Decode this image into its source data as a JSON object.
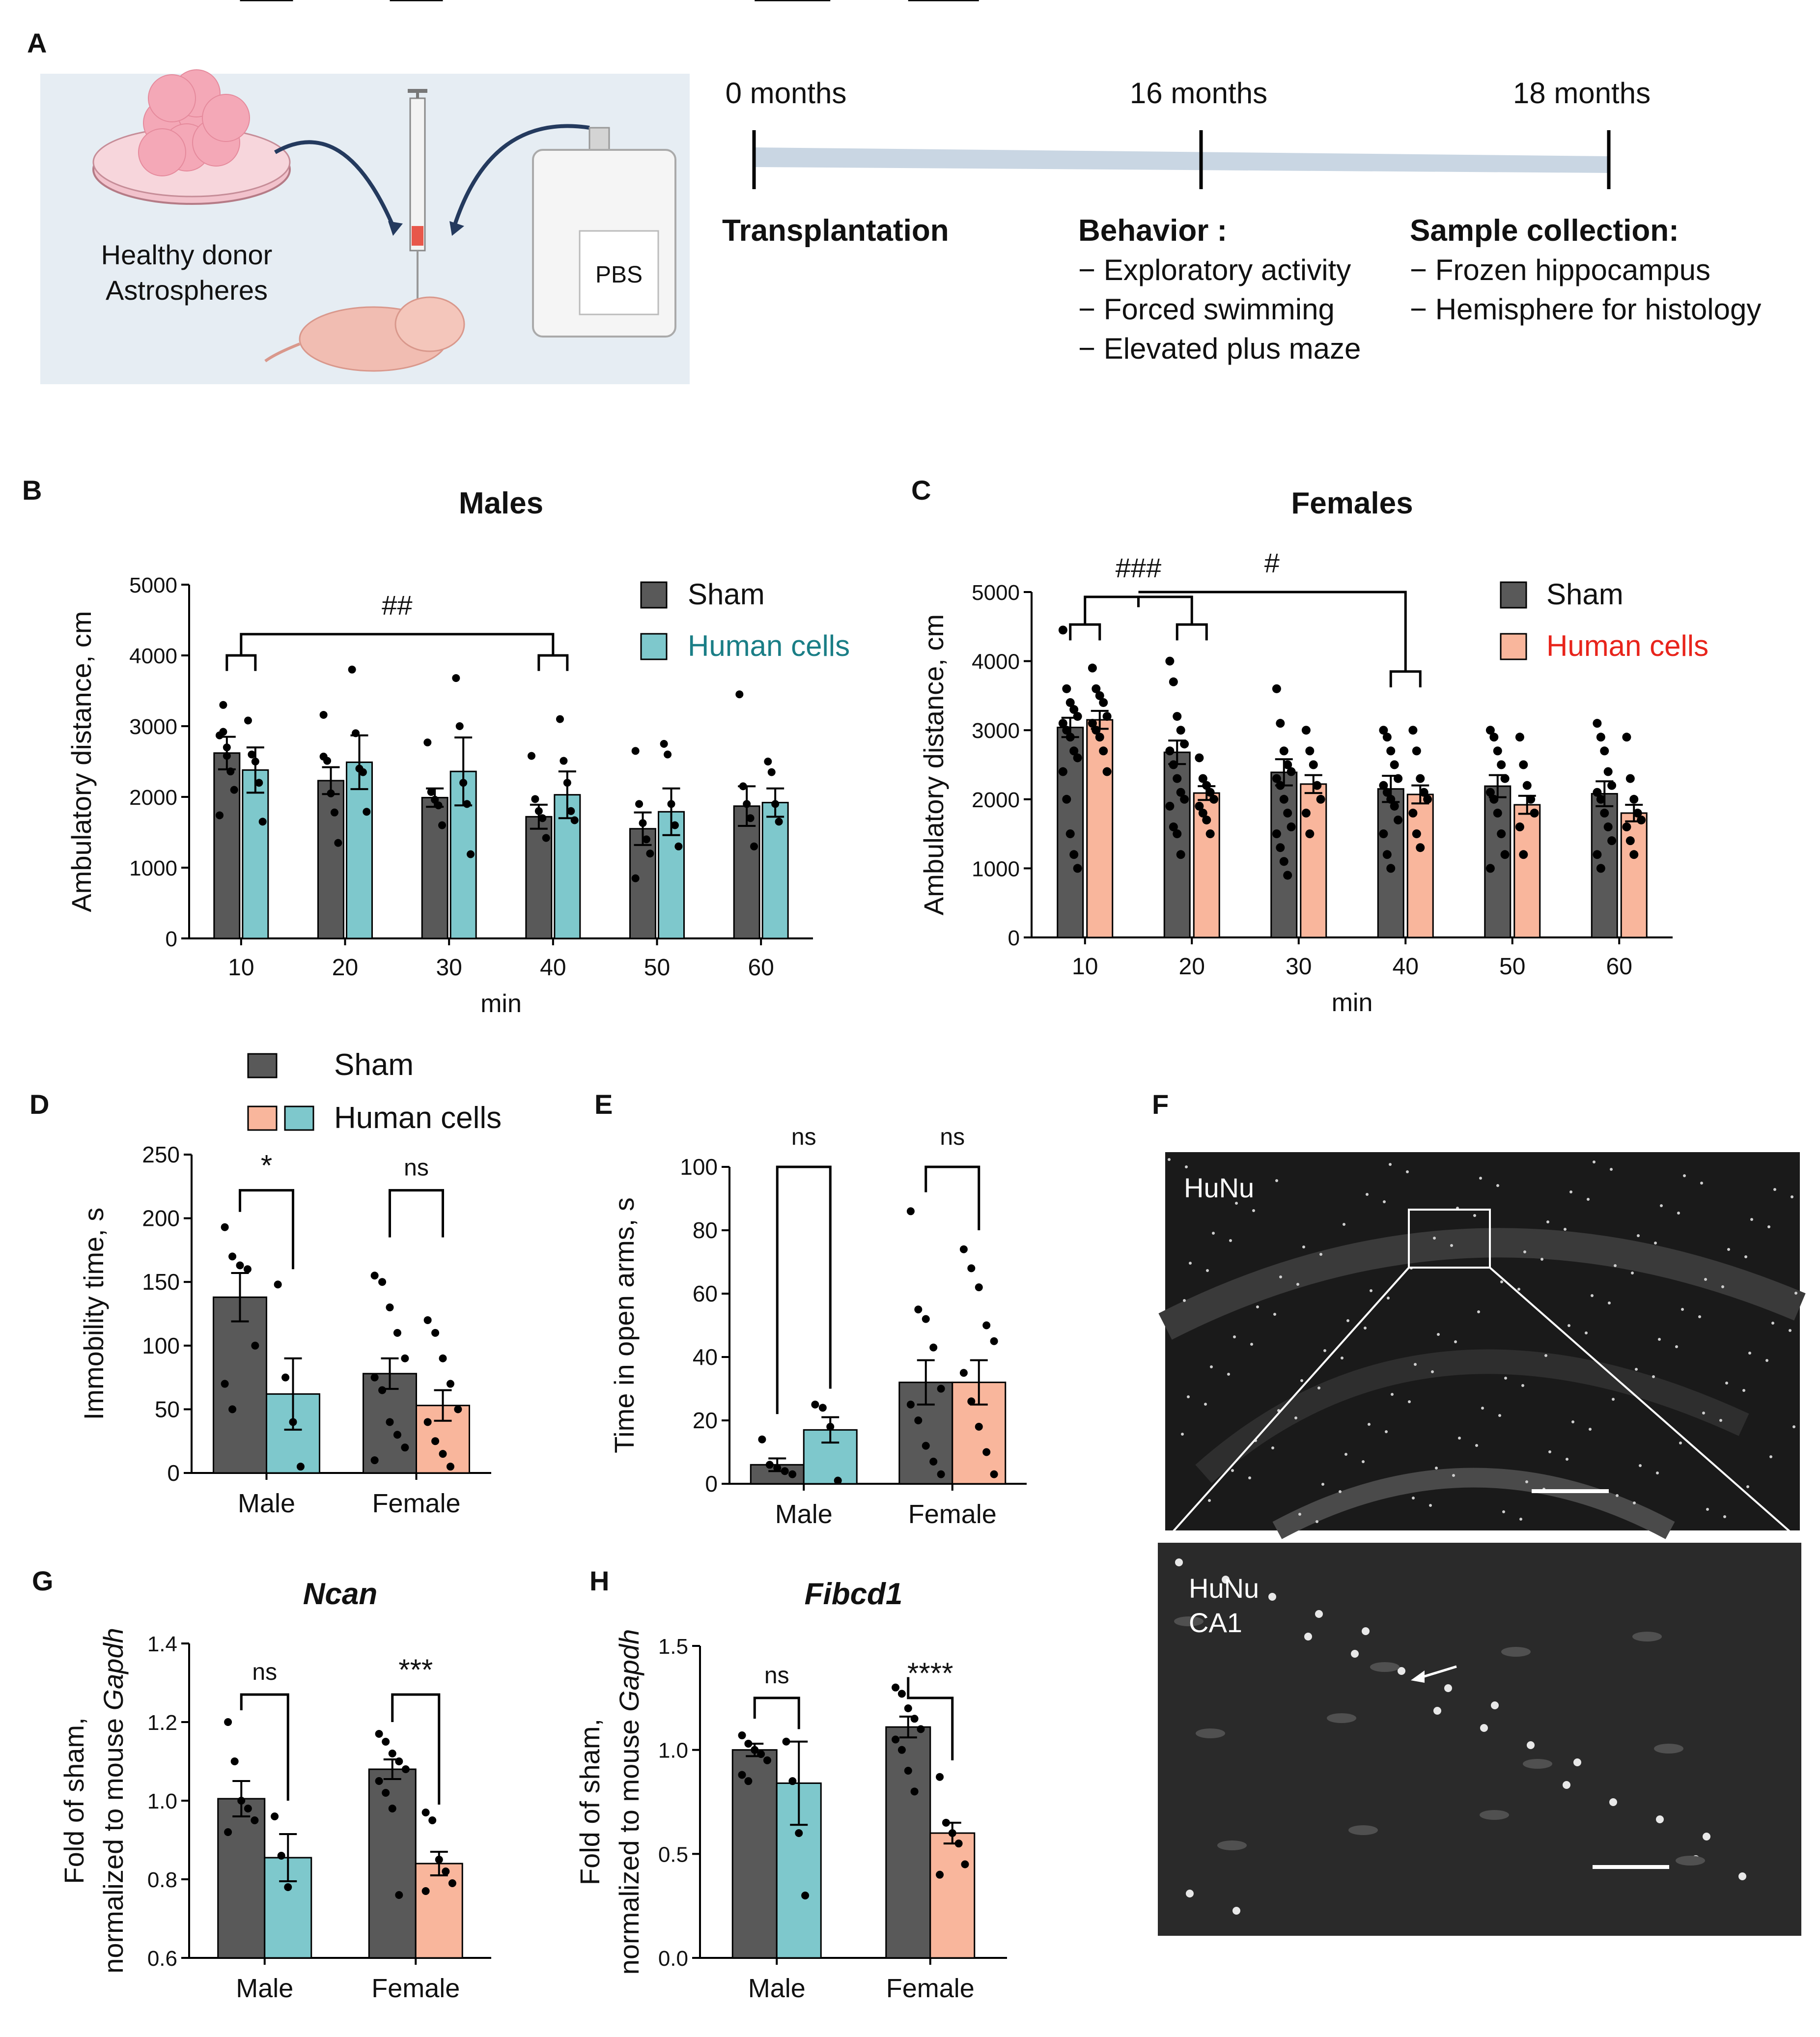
{
  "panel_labels": {
    "A": "A",
    "B": "B",
    "C": "C",
    "D": "D",
    "E": "E",
    "F": "F",
    "G": "G",
    "H": "H"
  },
  "colors": {
    "sham": "#595959",
    "human_male": "#7ec8cc",
    "human_female": "#f9b69c",
    "timeline": "#c9d6e3",
    "schematic_bg": "#e6edf3",
    "female_legend_text": "#e8241b",
    "male_legend_text": "#1a7e86"
  },
  "schematic": {
    "donor_label_line1": "Healthy donor",
    "donor_label_line2": "Astrospheres",
    "pbs_label": "PBS"
  },
  "timeline": {
    "points": [
      {
        "label": "0 months",
        "event": "Transplantation",
        "items": []
      },
      {
        "label": "16 months",
        "event": "Behavior :",
        "items": [
          "− Exploratory activity",
          "− Forced swimming",
          "− Elevated plus maze"
        ]
      },
      {
        "label": "18 months",
        "event": "Sample collection:",
        "items": [
          "− Frozen hippocampus",
          "− Hemisphere for histology"
        ]
      }
    ]
  },
  "shared_legend": {
    "sham": "Sham",
    "human": "Human cells"
  },
  "chart_data": [
    {
      "id": "B",
      "type": "bar",
      "title": "Males",
      "xlabel": "min",
      "ylabel": "Ambulatory distance, cm",
      "ylim": [
        0,
        5000
      ],
      "yticks": [
        0,
        1000,
        2000,
        3000,
        4000,
        5000
      ],
      "categories": [
        "10",
        "20",
        "30",
        "40",
        "50",
        "60"
      ],
      "legend": [
        "Sham",
        "Human cells"
      ],
      "series": [
        {
          "name": "Sham",
          "values": [
            2620,
            2230,
            1990,
            1720,
            1550,
            1870
          ],
          "sem": [
            230,
            190,
            130,
            170,
            230,
            280
          ],
          "points": [
            [
              2870,
              2920,
              2580,
              2360,
              2100,
              1740,
              3300,
              2700
            ],
            [
              3160,
              2510,
              2050,
              1780,
              1350,
              2570
            ],
            [
              2770,
              2070,
              1960,
              1880,
              1600
            ],
            [
              2580,
              1970,
              1800,
              1700,
              1420
            ],
            [
              2650,
              1900,
              1630,
              1400,
              1200,
              850
            ],
            [
              3450,
              2150,
              1900,
              1700,
              1300
            ]
          ]
        },
        {
          "name": "Human cells",
          "values": [
            2380,
            2490,
            2360,
            2030,
            1790,
            1920
          ],
          "sem": [
            320,
            380,
            480,
            330,
            330,
            200
          ],
          "points": [
            [
              3080,
              2600,
              2500,
              2200,
              1650
            ],
            [
              3800,
              2900,
              2400,
              2350,
              1790
            ],
            [
              3680,
              3000,
              2200,
              1900,
              1190
            ],
            [
              3100,
              2510,
              2200,
              1800,
              1670
            ],
            [
              2750,
              2600,
              1900,
              1600,
              1300
            ],
            [
              2500,
              2350,
              1900,
              1650
            ]
          ]
        }
      ],
      "annotations": [
        {
          "text": "##"
        }
      ]
    },
    {
      "id": "C",
      "type": "bar",
      "title": "Females",
      "xlabel": "min",
      "ylabel": "Ambulatory distance, cm",
      "ylim": [
        0,
        5000
      ],
      "yticks": [
        0,
        1000,
        2000,
        3000,
        4000,
        5000
      ],
      "categories": [
        "10",
        "20",
        "30",
        "40",
        "50",
        "60"
      ],
      "legend": [
        "Sham",
        "Human cells"
      ],
      "series": [
        {
          "name": "Sham",
          "values": [
            3040,
            2680,
            2390,
            2150,
            2190,
            2080
          ],
          "sem": [
            140,
            170,
            190,
            190,
            160,
            180
          ],
          "points": [
            [
              4450,
              3600,
              3400,
              3300,
              3200,
              3100,
              3000,
              2900,
              2700,
              2600,
              2400,
              2000,
              1500,
              1200,
              1000
            ],
            [
              4000,
              3700,
              3200,
              3000,
              2800,
              2700,
              2500,
              2300,
              2100,
              2000,
              1900,
              1600,
              1500,
              1200
            ],
            [
              3600,
              3100,
              2700,
              2500,
              2400,
              2300,
              2200,
              2000,
              1800,
              1600,
              1500,
              1300,
              1100,
              900
            ],
            [
              3000,
              2900,
              2700,
              2500,
              2300,
              2200,
              2100,
              2000,
              1900,
              1700,
              1500,
              1200,
              1000
            ],
            [
              3000,
              2900,
              2700,
              2500,
              2300,
              2100,
              2000,
              1800,
              1500,
              1200,
              1000
            ],
            [
              3100,
              2900,
              2700,
              2400,
              2200,
              2100,
              2000,
              1800,
              1600,
              1400,
              1200,
              1000
            ]
          ]
        },
        {
          "name": "Human cells",
          "values": [
            3150,
            2090,
            2220,
            2070,
            1920,
            1800
          ],
          "sem": [
            130,
            100,
            130,
            130,
            130,
            120
          ],
          "points": [
            [
              3900,
              3600,
              3500,
              3400,
              3200,
              3100,
              3000,
              2900,
              2700,
              2400
            ],
            [
              2600,
              2300,
              2200,
              2100,
              2000,
              1900,
              1800,
              1700,
              1500
            ],
            [
              3000,
              2700,
              2500,
              2200,
              2000,
              1800,
              1500
            ],
            [
              3000,
              2700,
              2300,
              2100,
              2000,
              1800,
              1500,
              1300
            ],
            [
              2900,
              2500,
              2200,
              2000,
              1800,
              1600,
              1200
            ],
            [
              2900,
              2300,
              2000,
              1800,
              1700,
              1600,
              1400,
              1200
            ]
          ]
        }
      ],
      "annotations": [
        {
          "text": "###"
        },
        {
          "text": "#"
        }
      ]
    },
    {
      "id": "D",
      "type": "bar",
      "title": "",
      "xlabel": "",
      "ylabel": "Immobility time, s",
      "ylim": [
        0,
        250
      ],
      "yticks": [
        0,
        50,
        100,
        150,
        200,
        250
      ],
      "categories": [
        "Male",
        "Female"
      ],
      "series": [
        {
          "name": "Sham",
          "values": [
            138,
            78
          ],
          "sem": [
            19,
            12
          ],
          "points": [
            [
              193,
              170,
              163,
              160,
              100,
              70,
              50
            ],
            [
              155,
              150,
              130,
              110,
              90,
              75,
              65,
              40,
              30,
              20,
              10
            ]
          ]
        },
        {
          "name": "Human cells",
          "values": [
            62,
            53
          ],
          "sem": [
            28,
            12
          ],
          "points": [
            [
              148,
              75,
              40,
              5
            ],
            [
              120,
              110,
              90,
              70,
              50,
              40,
              25,
              15,
              5
            ]
          ]
        }
      ],
      "significance": [
        "*",
        "ns"
      ]
    },
    {
      "id": "E",
      "type": "bar",
      "title": "",
      "xlabel": "",
      "ylabel": "Time in open arms, s",
      "ylim": [
        0,
        100
      ],
      "yticks": [
        0,
        20,
        40,
        60,
        80,
        100
      ],
      "categories": [
        "Male",
        "Female"
      ],
      "series": [
        {
          "name": "Sham",
          "values": [
            6,
            32
          ],
          "sem": [
            2,
            7
          ],
          "points": [
            [
              14,
              6,
              5,
              4,
              3
            ],
            [
              86,
              55,
              52,
              43,
              30,
              25,
              20,
              12,
              7,
              3
            ]
          ]
        },
        {
          "name": "Human cells",
          "values": [
            17,
            32
          ],
          "sem": [
            4,
            7
          ],
          "points": [
            [
              25,
              24,
              18,
              1
            ],
            [
              74,
              68,
              62,
              50,
              45,
              35,
              26,
              18,
              10,
              3
            ]
          ]
        }
      ],
      "significance": [
        "ns",
        "ns"
      ]
    },
    {
      "id": "G",
      "type": "bar",
      "title": "Ncan",
      "xlabel": "",
      "ylabel": "Fold of sham, normalized to mouse Gapdh",
      "ylim": [
        0.6,
        1.4
      ],
      "yticks": [
        0.6,
        0.8,
        1.0,
        1.2,
        1.4
      ],
      "categories": [
        "Male",
        "Female"
      ],
      "series": [
        {
          "name": "Sham",
          "values": [
            1.005,
            1.08
          ],
          "sem": [
            0.045,
            0.025
          ],
          "points": [
            [
              1.2,
              1.1,
              1.0,
              0.98,
              0.95,
              0.92
            ],
            [
              1.17,
              1.15,
              1.12,
              1.1,
              1.08,
              1.05,
              1.02,
              0.98,
              0.76
            ]
          ]
        },
        {
          "name": "Human cells",
          "values": [
            0.855,
            0.84
          ],
          "sem": [
            0.06,
            0.03
          ],
          "points": [
            [
              0.96,
              0.86,
              0.78
            ],
            [
              0.97,
              0.95,
              0.85,
              0.82,
              0.79,
              0.77
            ]
          ]
        }
      ],
      "significance": [
        "ns",
        "***"
      ]
    },
    {
      "id": "H",
      "type": "bar",
      "title": "Fibcd1",
      "xlabel": "",
      "ylabel": "Fold of sham, normalized to mouse Gapdh",
      "ylim": [
        0,
        1.5
      ],
      "yticks": [
        0.0,
        0.5,
        1.0,
        1.5
      ],
      "categories": [
        "Male",
        "Female"
      ],
      "series": [
        {
          "name": "Sham",
          "values": [
            1.0,
            1.11
          ],
          "sem": [
            0.03,
            0.05
          ],
          "points": [
            [
              1.07,
              1.03,
              1.0,
              0.98,
              0.95,
              0.88,
              0.85
            ],
            [
              1.3,
              1.27,
              1.2,
              1.15,
              1.1,
              1.05,
              1.0,
              0.9,
              0.8
            ]
          ]
        },
        {
          "name": "Human cells",
          "values": [
            0.84,
            0.6
          ],
          "sem": [
            0.2,
            0.05
          ],
          "points": [
            [
              1.04,
              0.85,
              0.6,
              0.3
            ],
            [
              0.87,
              0.65,
              0.6,
              0.55,
              0.45,
              0.4
            ]
          ]
        }
      ],
      "significance": [
        "ns",
        "****"
      ]
    }
  ],
  "micro": {
    "top_labels": [
      "HuNu"
    ],
    "bottom_labels": [
      "HuNu",
      "CA1"
    ]
  }
}
